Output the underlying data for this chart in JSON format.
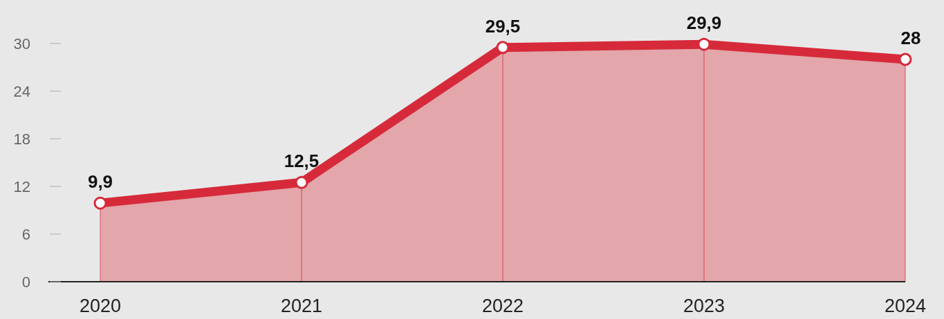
{
  "chart_data": {
    "type": "area",
    "categories": [
      "2020",
      "2021",
      "2022",
      "2023",
      "2024"
    ],
    "series": [
      {
        "color": "#d62a3a",
        "values": [
          9.9,
          12.5,
          29.5,
          29.9,
          28
        ],
        "value_labels": [
          "9,9",
          "12,5",
          "29,5",
          "29,9",
          "28"
        ]
      }
    ],
    "ylim": [
      0,
      30
    ],
    "yticks": [
      0,
      6,
      12,
      18,
      24,
      30
    ],
    "marker": "circle",
    "grid": "x"
  }
}
